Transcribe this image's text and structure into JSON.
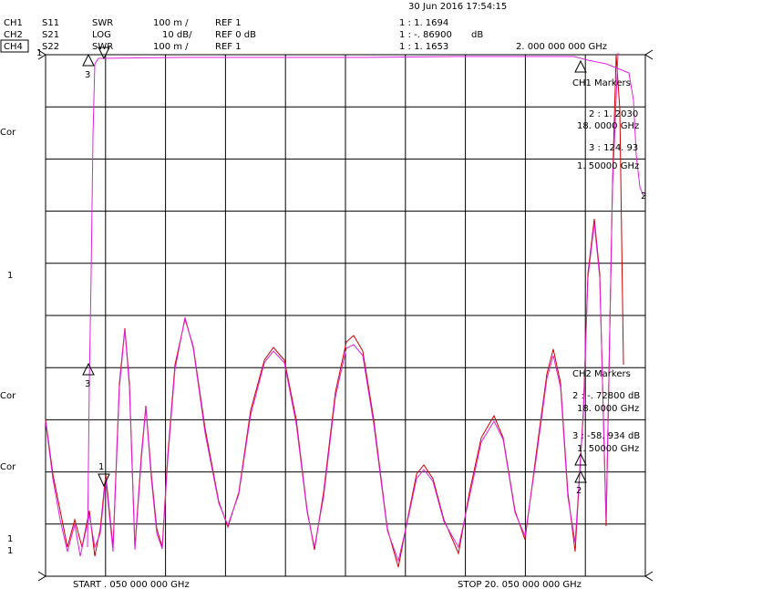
{
  "header": {
    "timestamp": "30 Jun 2016  17:54:15",
    "channels": [
      {
        "channel": "CH1",
        "parameter": "S11",
        "format": "SWR",
        "scale": "100 m /",
        "reference": "REF 1",
        "marker": "1 :  1. 1694"
      },
      {
        "channel": "CH2",
        "parameter": "S21",
        "format": "LOG",
        "scale": "10 dB/",
        "reference": "REF 0 dB",
        "marker": "1 : -. 86900",
        "unit": "dB"
      },
      {
        "channel": "CH4",
        "parameter": "S22",
        "format": "SWR",
        "scale": "100 m /",
        "reference": "REF 1",
        "marker": "1 :  1. 1653",
        "frequency": "2. 000   000   000   GHz"
      }
    ]
  },
  "left_labels": [
    "1",
    "Cor",
    "1",
    "Cor",
    "Cor",
    "1",
    "1"
  ],
  "footer": {
    "start": "START   . 050   000   000   GHz",
    "stop": "STOP   20. 050   000   000   GHz"
  },
  "markers": {
    "ch1": {
      "title": "CH1   Markers",
      "m2_value": "2 :  1. 2030",
      "m2_freq": "18. 0000   GHz",
      "m3_value": "3 :  124. 93",
      "m3_freq": "1. 50000   GHz"
    },
    "ch2": {
      "title": "CH2   Markers",
      "m2_value": "2 : -. 72800    dB",
      "m2_freq": "18. 0000   GHz",
      "m3_value": "3 : -58. 934    dB",
      "m3_freq": "1. 50000   GHz"
    }
  },
  "trace_labels": [
    "3",
    "3",
    "1",
    "2",
    "2"
  ]
}
